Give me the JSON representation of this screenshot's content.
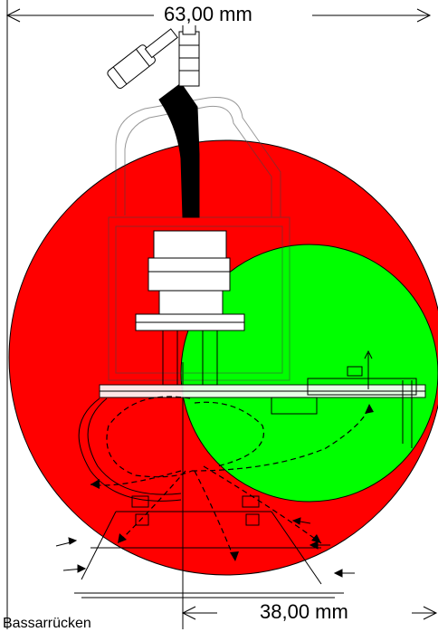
{
  "dimensions": {
    "top_label": "63,00 mm",
    "bottom_label": "38,00 mm"
  },
  "caption": "Bassarrücken",
  "colors": {
    "large_circle": "#ff0000",
    "small_circle": "#00ff00",
    "outline": "#000000",
    "background": "#ffffff"
  }
}
